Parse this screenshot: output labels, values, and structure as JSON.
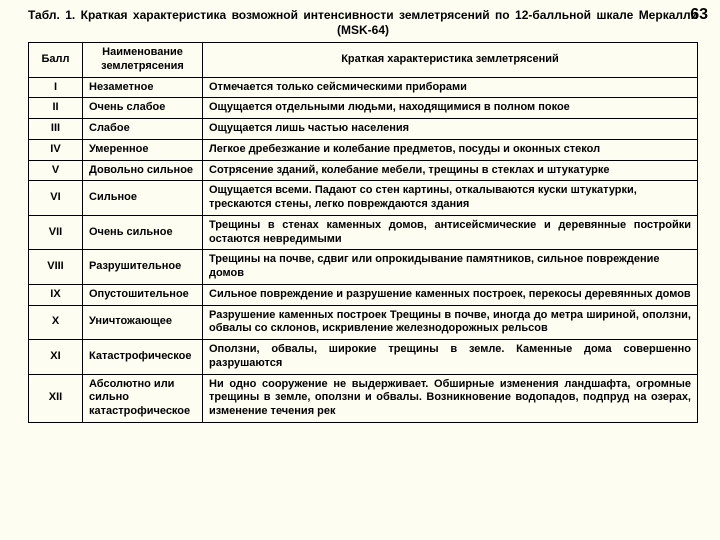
{
  "page_number": "63",
  "caption": "Табл. 1. Краткая характеристика возможной интенсивности землетрясений по 12-балльной шкале Меркалли (MSK-64)",
  "table": {
    "headers": {
      "col1": "Балл",
      "col2": "Наименование землетрясения",
      "col3": "Краткая характеристика землетрясений"
    },
    "rows": [
      {
        "ball": "I",
        "name": "Незаметное",
        "desc": "Отмечается только сейсмическими приборами",
        "justify": false
      },
      {
        "ball": "II",
        "name": "Очень слабое",
        "desc": "Ощущается отдельными людьми, находящимися в полном покое",
        "justify": false
      },
      {
        "ball": "III",
        "name": "Слабое",
        "desc": "Ощущается лишь частью населения",
        "justify": false
      },
      {
        "ball": "IV",
        "name": "Умеренное",
        "desc": "Легкое дребезжание и колебание предметов, посуды и оконных стекол",
        "justify": true
      },
      {
        "ball": "V",
        "name": "Довольно сильное",
        "desc": "Сотрясение зданий, колебание мебели, трещины в стеклах и штукатурке",
        "justify": true
      },
      {
        "ball": "VI",
        "name": "Сильное",
        "desc": "Ощущается всеми. Падают со стен картины, откалываются куски штукатурки, трескаются стены, легко повреждаются здания",
        "justify": false
      },
      {
        "ball": "VII",
        "name": "Очень сильное",
        "desc": "Трещины в стенах каменных домов, антисейсмические и деревянные постройки остаются невредимыми",
        "justify": true
      },
      {
        "ball": "VIII",
        "name": "Разрушительное",
        "desc": "Трещины на почве, сдвиг или опрокидывание памятников, сильное повреждение домов",
        "justify": false
      },
      {
        "ball": "IX",
        "name": "Опустошительное",
        "desc": "Сильное повреждение и разрушение каменных построек, перекосы деревянных домов",
        "justify": false
      },
      {
        "ball": "X",
        "name": "Уничтожающее",
        "desc": "Разрушение каменных построек Трещины в почве, иногда до метра шириной, оползни, обвалы со склонов, искривление железнодорожных рельсов",
        "justify": true
      },
      {
        "ball": "XI",
        "name": "Катастрофическое",
        "desc": "Оползни, обвалы, широкие трещины в земле. Каменные дома совершенно разрушаются",
        "justify": true
      },
      {
        "ball": "XII",
        "name": "Абсолютно или сильно катастрофическое",
        "desc": "Ни одно сооружение не выдерживает. Обширные изменения ландшафта, огромные трещины в земле, оползни и обвалы. Возникновение водопадов, подпруд на озерах, изменение течения рек",
        "justify": true
      }
    ]
  }
}
